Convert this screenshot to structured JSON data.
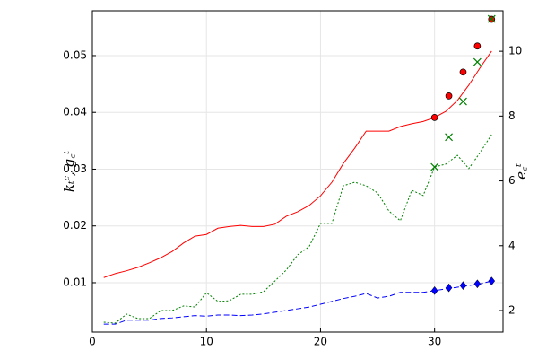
{
  "chart_data": {
    "type": "line",
    "ylabel": "kₜᶜ, g꜀ᵗ",
    "y2label": "e꜀ᵗ",
    "xlim": [
      0,
      36
    ],
    "xticks": [
      0,
      10,
      20,
      30
    ],
    "ylim": [
      0.0013,
      0.0579
    ],
    "yticks": [
      0.01,
      0.02,
      0.03,
      0.04,
      0.05
    ],
    "y2lim": [
      1.335,
      11.25
    ],
    "y2ticks": [
      2,
      4,
      6,
      8,
      10
    ],
    "grid": true,
    "series": [
      {
        "color": "#ff0000",
        "style": "solid",
        "marker": "none",
        "x": [
          1,
          2,
          3,
          4,
          5,
          6,
          7,
          8,
          9,
          10,
          11,
          12,
          13,
          14,
          15,
          16,
          17,
          18,
          19,
          20,
          21,
          22,
          23,
          24,
          25,
          26,
          27,
          28,
          29,
          30,
          31,
          32,
          33,
          34,
          35
        ],
        "values": [
          0.0109,
          0.0116,
          0.0121,
          0.0127,
          0.0135,
          0.0144,
          0.0155,
          0.017,
          0.0182,
          0.0185,
          0.0196,
          0.0199,
          0.0201,
          0.0199,
          0.0199,
          0.0203,
          0.0217,
          0.0225,
          0.0236,
          0.0253,
          0.0277,
          0.031,
          0.0337,
          0.0367,
          0.0367,
          0.0367,
          0.0375,
          0.038,
          0.0384,
          0.0391,
          0.0402,
          0.0421,
          0.0448,
          0.0479,
          0.0508
        ]
      },
      {
        "color": "#0000ff",
        "style": "dashed",
        "marker": "none",
        "x": [
          1,
          2,
          3,
          4,
          5,
          6,
          7,
          8,
          9,
          10,
          11,
          12,
          13,
          14,
          15,
          16,
          17,
          18,
          19,
          20,
          21,
          22,
          23,
          24,
          25,
          26,
          27,
          28,
          29,
          30,
          31,
          32,
          33,
          34,
          35
        ],
        "values": [
          0.0027,
          0.0027,
          0.0034,
          0.0034,
          0.0034,
          0.0037,
          0.0038,
          0.004,
          0.0042,
          0.0041,
          0.0043,
          0.0043,
          0.0042,
          0.0043,
          0.0045,
          0.0048,
          0.0051,
          0.0054,
          0.0057,
          0.0062,
          0.0067,
          0.0072,
          0.0076,
          0.0081,
          0.0073,
          0.0076,
          0.0083,
          0.0083,
          0.0083,
          0.0086,
          0.0089,
          0.0092,
          0.0095,
          0.0098,
          0.0103
        ]
      },
      {
        "color": "#008000",
        "style": "dotted",
        "marker": "none",
        "axis": "y2",
        "x": [
          1,
          2,
          3,
          4,
          5,
          6,
          7,
          8,
          9,
          10,
          11,
          12,
          13,
          14,
          15,
          16,
          17,
          18,
          19,
          20,
          21,
          22,
          23,
          24,
          25,
          26,
          27,
          28,
          29,
          30,
          31,
          32,
          33,
          34,
          35
        ],
        "values": [
          1.64,
          1.61,
          1.89,
          1.75,
          1.75,
          2.0,
          2.0,
          2.14,
          2.11,
          2.55,
          2.28,
          2.3,
          2.5,
          2.5,
          2.58,
          2.91,
          3.25,
          3.72,
          3.97,
          4.69,
          4.69,
          5.85,
          5.96,
          5.85,
          5.63,
          5.07,
          4.77,
          5.71,
          5.55,
          6.43,
          6.52,
          6.79,
          6.38,
          6.88,
          7.43
        ]
      },
      {
        "color": "#ff0000",
        "style": "none",
        "marker": "circle",
        "x": [
          30,
          31.25,
          32.5,
          33.75,
          35
        ],
        "values": [
          0.0391,
          0.0429,
          0.0471,
          0.0517,
          0.0564
        ]
      },
      {
        "color": "#0000ff",
        "style": "none",
        "marker": "diamond",
        "x": [
          30,
          31.25,
          32.5,
          33.75,
          35
        ],
        "values": [
          0.0086,
          0.0091,
          0.0095,
          0.0098,
          0.0103
        ]
      },
      {
        "color": "#008000",
        "style": "none",
        "marker": "cross",
        "axis": "y2",
        "x": [
          30,
          31.25,
          32.5,
          33.75,
          35
        ],
        "values": [
          6.43,
          7.35,
          8.45,
          9.67,
          11.0
        ]
      }
    ]
  }
}
